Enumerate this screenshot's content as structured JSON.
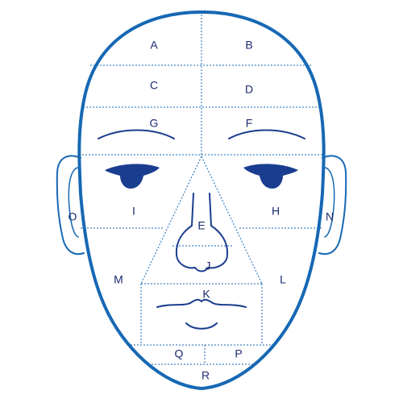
{
  "colors": {
    "outline": "#1668b4",
    "grid": "#1668b4",
    "features": "#1a3d8f",
    "labels": "#1a2a6e",
    "background": "#ffffff"
  },
  "regions": {
    "A": "A",
    "B": "B",
    "C": "C",
    "D": "D",
    "E": "E",
    "F": "F",
    "G": "G",
    "H": "H",
    "I": "I",
    "J": "J",
    "K": "K",
    "L": "L",
    "M": "M",
    "N": "N",
    "O": "O",
    "P": "P",
    "Q": "Q",
    "R": "R"
  }
}
